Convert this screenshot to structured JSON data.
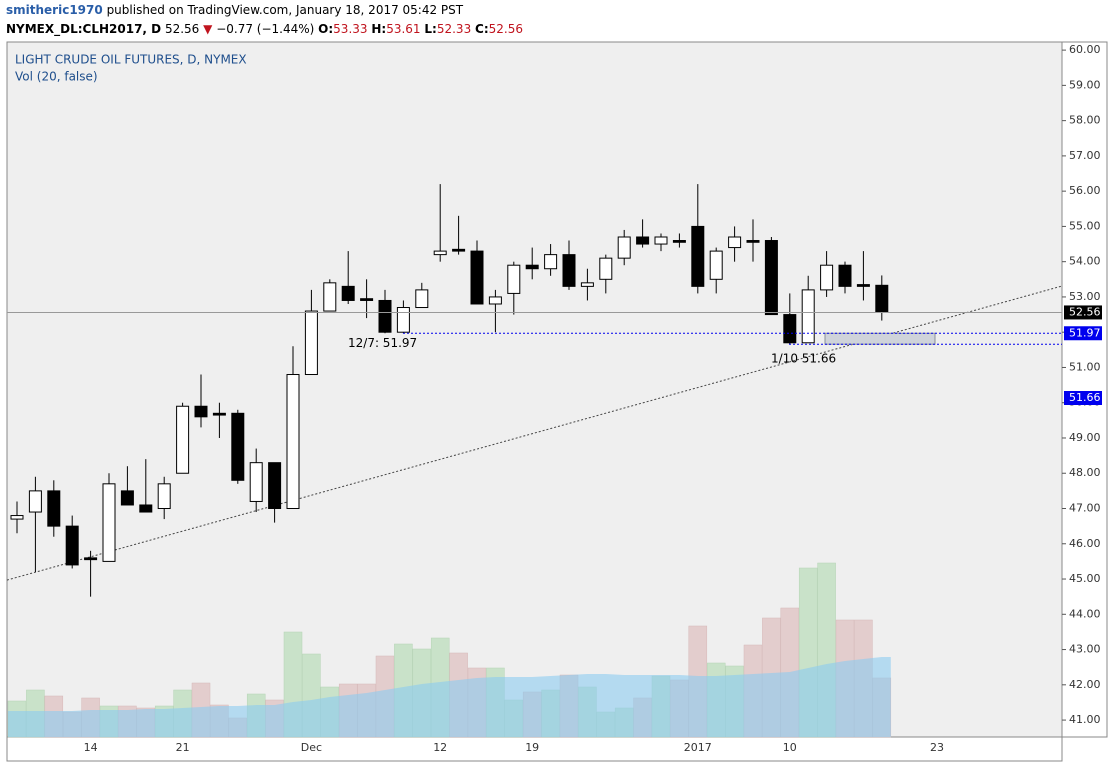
{
  "header": {
    "author": "smitheric1970",
    "published": "published on TradingView.com, January 18, 2017 05:42 PST",
    "symbol": "NYMEX_DL:CLH2017, D",
    "price": "52.56",
    "arrow": "▼",
    "change": "−0.77 (−1.44%)",
    "ohlc": [
      {
        "label": "O:",
        "value": "53.33"
      },
      {
        "label": "H:",
        "value": "53.61"
      },
      {
        "label": "L:",
        "value": "52.33"
      },
      {
        "label": "C:",
        "value": "52.56"
      }
    ]
  },
  "chart_data": {
    "type": "candlestick",
    "title": "LIGHT CRUDE OIL FUTURES, D, NYMEX",
    "subtitle": "Vol (20, false)",
    "categories": [
      null,
      null,
      null,
      null,
      "14",
      null,
      null,
      null,
      null,
      "21",
      null,
      null,
      null,
      null,
      null,
      null,
      "Dec",
      null,
      null,
      null,
      null,
      null,
      null,
      "12",
      null,
      null,
      null,
      null,
      "19",
      null,
      null,
      null,
      null,
      null,
      null,
      null,
      null,
      "2017",
      null,
      null,
      null,
      null,
      "10",
      null,
      null,
      null,
      null,
      null,
      null,
      null,
      "23"
    ],
    "open": [
      46.7,
      46.9,
      47.5,
      46.5,
      45.6,
      45.5,
      47.5,
      47.1,
      47.0,
      48.0,
      49.9,
      49.7,
      49.7,
      47.2,
      48.3,
      47.0,
      50.8,
      52.6,
      53.3,
      52.95,
      52.9,
      52.0,
      52.7,
      54.2,
      54.35,
      54.3,
      52.8,
      53.1,
      53.9,
      53.8,
      54.2,
      53.3,
      53.5,
      54.1,
      54.7,
      54.5,
      54.6,
      55.0,
      53.5,
      54.4,
      54.6,
      54.6,
      52.5,
      51.7,
      53.2,
      53.9,
      53.35,
      53.33,
      null,
      null,
      null
    ],
    "high": [
      47.2,
      47.9,
      47.8,
      46.8,
      45.8,
      48.0,
      48.2,
      48.4,
      47.9,
      50.0,
      50.8,
      50.0,
      49.8,
      48.7,
      48.3,
      51.6,
      53.2,
      53.5,
      54.3,
      53.5,
      53.2,
      52.9,
      53.4,
      56.2,
      55.3,
      54.6,
      53.2,
      54.0,
      54.4,
      54.5,
      54.6,
      53.8,
      54.2,
      54.9,
      55.2,
      54.8,
      54.8,
      56.2,
      54.4,
      55.0,
      55.2,
      54.7,
      53.1,
      53.6,
      54.3,
      54.0,
      54.3,
      53.61,
      null,
      null,
      null
    ],
    "low": [
      46.3,
      45.2,
      46.2,
      45.3,
      44.5,
      45.5,
      47.1,
      46.9,
      46.7,
      48.0,
      49.3,
      49.0,
      47.7,
      46.9,
      46.6,
      47.0,
      50.8,
      52.6,
      52.8,
      52.4,
      51.97,
      51.97,
      52.7,
      54.0,
      54.2,
      52.8,
      52.0,
      52.5,
      53.5,
      53.6,
      53.2,
      52.9,
      53.1,
      53.9,
      54.4,
      54.3,
      54.4,
      53.1,
      53.1,
      54.0,
      54.0,
      52.5,
      51.66,
      51.7,
      53.0,
      53.1,
      52.9,
      52.33,
      null,
      null,
      null
    ],
    "close": [
      46.8,
      47.5,
      46.5,
      45.4,
      45.55,
      47.7,
      47.1,
      46.9,
      47.7,
      49.9,
      49.6,
      49.65,
      47.8,
      48.3,
      47.0,
      50.8,
      52.6,
      53.4,
      52.9,
      52.9,
      52.0,
      52.7,
      53.2,
      54.3,
      54.3,
      52.8,
      53.0,
      53.9,
      53.8,
      54.2,
      53.3,
      53.4,
      54.1,
      54.7,
      54.5,
      54.7,
      54.55,
      53.3,
      54.3,
      54.7,
      54.55,
      52.5,
      51.7,
      53.2,
      53.9,
      53.3,
      53.3,
      52.56,
      null,
      null,
      null
    ],
    "volume": [
      36,
      47,
      41,
      25,
      39,
      31,
      31,
      29,
      31,
      47,
      54,
      32,
      19,
      43,
      37,
      105,
      83,
      50,
      53,
      53,
      81,
      93,
      88,
      99,
      84,
      69,
      69,
      37,
      45,
      47,
      62,
      50,
      25,
      29,
      39,
      61,
      57,
      111,
      74,
      71,
      92,
      119,
      129,
      169,
      174,
      117,
      117,
      59,
      null,
      null,
      null
    ],
    "volume_ma": [
      26,
      26,
      26,
      26,
      27,
      27,
      27,
      28,
      28,
      29,
      30,
      31,
      31,
      32,
      32,
      35,
      37,
      40,
      42,
      44,
      47,
      50,
      53,
      55,
      57,
      59,
      60,
      60,
      60,
      61,
      62,
      63,
      63,
      62,
      62,
      62,
      62,
      61,
      61,
      62,
      63,
      64,
      65,
      69,
      73,
      76,
      78,
      80,
      null,
      null,
      null
    ],
    "vlim": [
      0,
      230
    ],
    "ylim": [
      40.52,
      60.23
    ],
    "yticks": [
      {
        "value": 41,
        "label": "41.00"
      },
      {
        "value": 42,
        "label": "42.00"
      },
      {
        "value": 43,
        "label": "43.00"
      },
      {
        "value": 44,
        "label": "44.00"
      },
      {
        "value": 45,
        "label": "45.00"
      },
      {
        "value": 46,
        "label": "46.00"
      },
      {
        "value": 47,
        "label": "47.00"
      },
      {
        "value": 48,
        "label": "48.00"
      },
      {
        "value": 49,
        "label": "49.00"
      },
      {
        "value": 50,
        "label": "50.00"
      },
      {
        "value": 51,
        "label": "51.00"
      },
      {
        "value": 52,
        "label": "52.00"
      },
      {
        "value": 53,
        "label": "53.00"
      },
      {
        "value": 54,
        "label": "54.00"
      },
      {
        "value": 55,
        "label": "55.00"
      },
      {
        "value": 56,
        "label": "56.00"
      },
      {
        "value": 57,
        "label": "57.00"
      },
      {
        "value": 58,
        "label": "58.00"
      },
      {
        "value": 59,
        "label": "59.00"
      },
      {
        "value": 60,
        "label": "60.00"
      }
    ],
    "trendline": [
      44.97,
      53.31
    ],
    "annotations": [
      {
        "label": "12/7: 51.97",
        "value": 51.97
      },
      {
        "label": "1/10 51.66",
        "value": 51.66
      }
    ],
    "colors": {
      "up": "#ffffff",
      "down": "#000000",
      "volume_up": "#c9e2c9",
      "volume_down": "#e3cdcd",
      "volume_ma": "#8ccbf0",
      "annotation": "#0000ee"
    }
  }
}
